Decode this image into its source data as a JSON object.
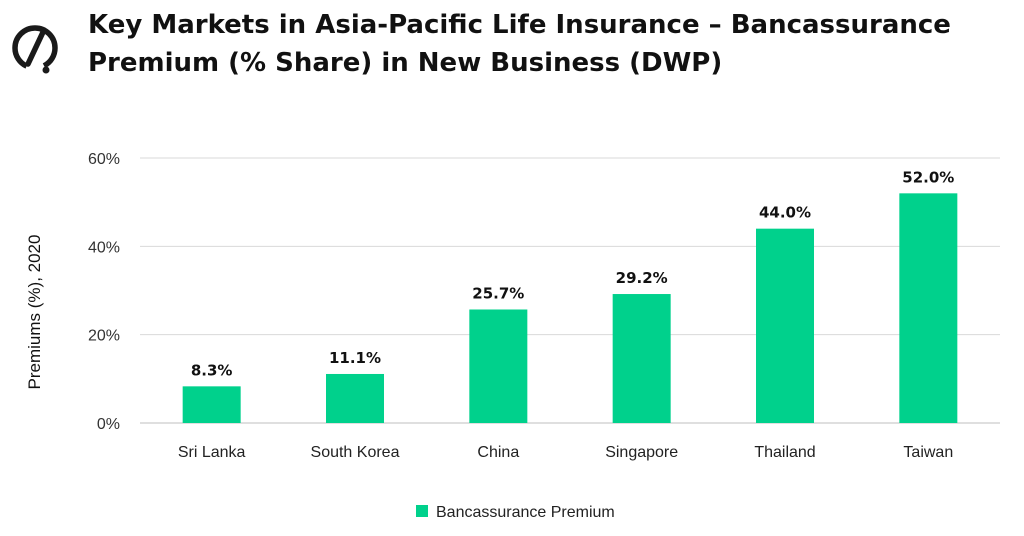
{
  "header": {
    "title_line1": "Key Markets in Asia-Pacific Life Insurance – Bancassurance",
    "title_line2": "Premium (% Share) in New Business (DWP)",
    "logo_icon": "brand-logo-icon"
  },
  "chart_data": {
    "type": "bar",
    "title": "Key Markets in Asia-Pacific Life Insurance – Bancassurance Premium (% Share) in New Business (DWP)",
    "xlabel": "",
    "ylabel": "Premiums (%), 2020",
    "categories": [
      "Sri Lanka",
      "South Korea",
      "China",
      "Singapore",
      "Thailand",
      "Taiwan"
    ],
    "series": [
      {
        "name": "Bancassurance Premium",
        "values": [
          8.3,
          11.1,
          25.7,
          29.2,
          44.0,
          52.0
        ],
        "labels": [
          "8.3%",
          "11.1%",
          "25.7%",
          "29.2%",
          "44.0%",
          "52.0%"
        ],
        "color": "#00D18C"
      }
    ],
    "ylim": [
      0,
      60
    ],
    "yticks": [
      0,
      20,
      40,
      60
    ],
    "ytick_labels": [
      "0%",
      "20%",
      "40%",
      "60%"
    ],
    "grid": true,
    "legend_position": "bottom-center"
  }
}
